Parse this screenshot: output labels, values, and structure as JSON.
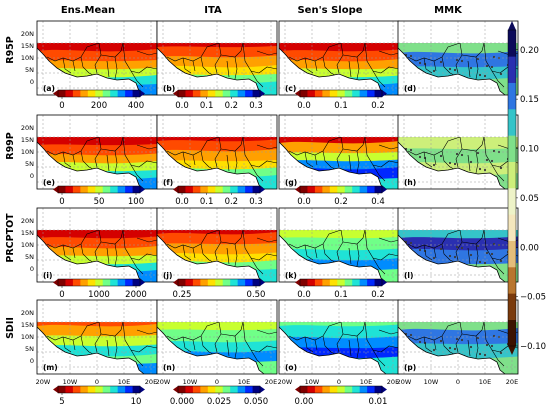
{
  "chart_data": {
    "type": "heatmap",
    "columns": [
      "Ens.Mean",
      "ITA",
      "Sen's Slope",
      "MMK"
    ],
    "rows": [
      "R95P",
      "R99P",
      "PRCPTOT",
      "SDII"
    ],
    "panel_labels": [
      [
        "(a)",
        "(b)",
        "(c)",
        "(d)"
      ],
      [
        "(e)",
        "(f)",
        "(g)",
        "(h)"
      ],
      [
        "(i)",
        "(j)",
        "(k)",
        "(l)"
      ],
      [
        "(m)",
        "(n)",
        "(o)",
        "(p)"
      ]
    ],
    "lat_labels": [
      "20N",
      "15N",
      "10N",
      "5N",
      "0"
    ],
    "lon_labels": [
      "20W",
      "10W",
      "0",
      "10E",
      "20E"
    ],
    "colorbars": [
      [
        "0",
        "200",
        "400"
      ],
      [
        "0.0",
        "0.1",
        "0.2",
        "0.3"
      ],
      [
        "0.0",
        "0.1",
        "0.2"
      ],
      [
        "0",
        "50",
        "100"
      ],
      [
        "0.0",
        "0.1",
        "0.2",
        "0.3"
      ],
      [
        "0.0",
        "0.2",
        "0.4"
      ],
      [
        "0",
        "1000",
        "2000"
      ],
      [
        "0.25",
        "0.50"
      ],
      [
        "0.0",
        "0.1",
        "0.2"
      ],
      [
        "5",
        "10"
      ],
      [
        "0.000",
        "0.025",
        "0.050"
      ],
      [
        "0.00",
        "0.01"
      ]
    ],
    "mmk_colorbar": {
      "ticks": [
        "0.20",
        "0.15",
        "0.10",
        "0.05",
        "0.00",
        "−0.05",
        "−0.10"
      ],
      "range": [
        -0.1,
        0.22
      ]
    }
  },
  "palette": {
    "jet_r": [
      "#7f0000",
      "#d40000",
      "#ff4a00",
      "#ffa000",
      "#ffe000",
      "#c8ff30",
      "#70ff88",
      "#1fe3d6",
      "#008cff",
      "#0028ff",
      "#00007f"
    ],
    "brbg": [
      "#3c1200",
      "#7a3a0c",
      "#b8752e",
      "#e3bd7a",
      "#f5e7bd",
      "#eef3c8",
      "#cdef7a",
      "#7fe08a",
      "#35c4c9",
      "#2f76e2",
      "#2a2fb0",
      "#0c0a5a"
    ],
    "map": {
      "ocean": "#ffffff",
      "border": "#000000",
      "grid": "#9a9a9a"
    }
  }
}
